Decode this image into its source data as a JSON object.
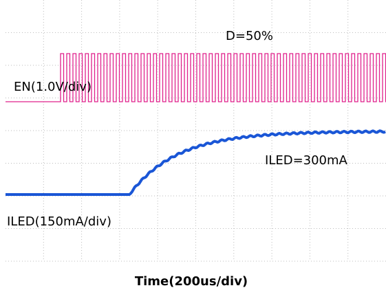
{
  "labels": {
    "duty": "D=50%",
    "en_scale": "EN(1.0V/div)",
    "iled_value": "ILED=300mA",
    "iled_scale": "ILED(150mA/div)",
    "time_scale": "Time(200us/div)"
  }
}
